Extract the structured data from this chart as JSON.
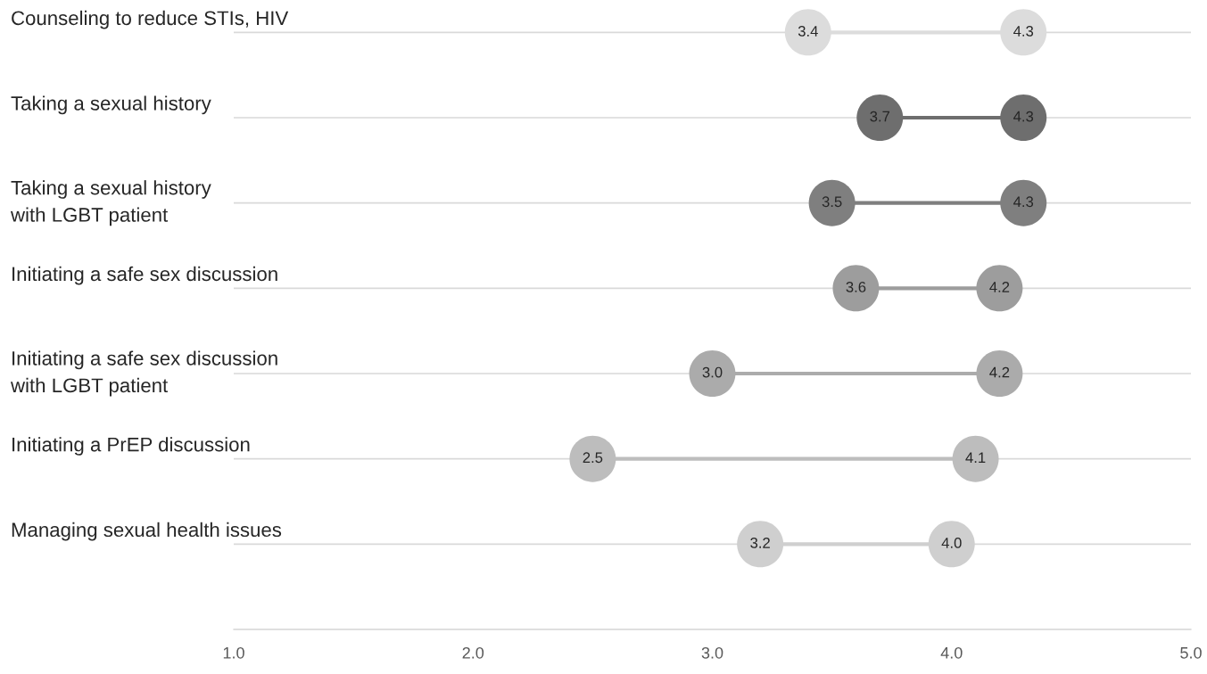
{
  "chart_data": {
    "type": "scatter",
    "orientation": "horizontal",
    "categories": [
      "Counseling to reduce STIs, HIV",
      "Taking a sexual history",
      "Taking a sexual history\nwith LGBT patient",
      "Initiating a safe sex discussion",
      "Initiating a safe sex discussion\nwith LGBT patient",
      "Initiating a PrEP discussion",
      "Managing sexual health issues"
    ],
    "series": [
      {
        "values": [
          3.4,
          3.7,
          3.5,
          3.6,
          3.0,
          2.5,
          3.2
        ],
        "value_labels": [
          "3.4",
          "3.7",
          "3.5",
          "3.6",
          "3.0",
          "2.5",
          "3.2"
        ],
        "colors": [
          "#dcdcdc",
          "#6e6e6e",
          "#7f7f7f",
          "#9d9d9d",
          "#ababab",
          "#bdbdbd",
          "#cfcfcf"
        ]
      },
      {
        "values": [
          4.3,
          4.3,
          4.3,
          4.2,
          4.2,
          4.1,
          4.0
        ],
        "value_labels": [
          "4.3",
          "4.3",
          "4.3",
          "4.2",
          "4.2",
          "4.1",
          "4.0"
        ],
        "colors": [
          "#dcdcdc",
          "#6e6e6e",
          "#7f7f7f",
          "#9d9d9d",
          "#ababab",
          "#bdbdbd",
          "#cfcfcf"
        ]
      }
    ],
    "xlim": [
      1,
      5
    ],
    "xticks": [
      {
        "value": 1,
        "label": "1.0"
      },
      {
        "value": 2,
        "label": "2.0"
      },
      {
        "value": 3,
        "label": "3.0"
      },
      {
        "value": 4,
        "label": "4.0"
      },
      {
        "value": 5,
        "label": "5.0"
      }
    ],
    "grid": "y",
    "marker": "circle",
    "legend": false
  }
}
